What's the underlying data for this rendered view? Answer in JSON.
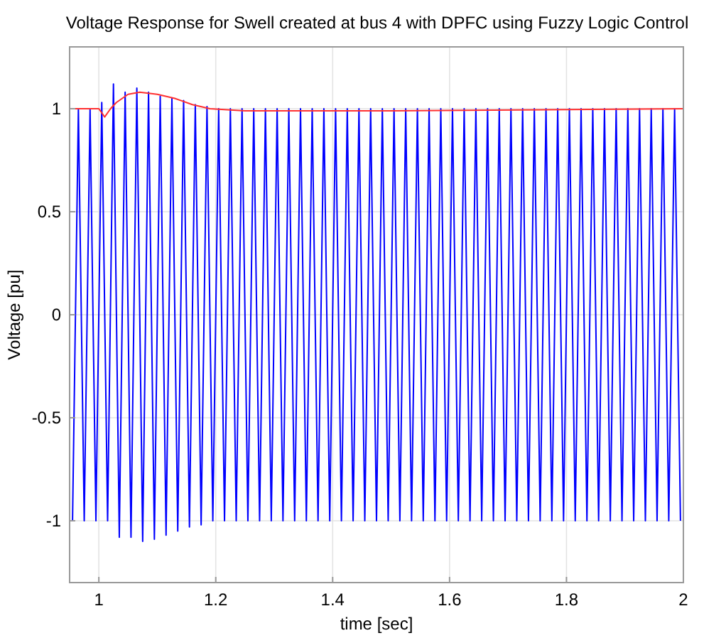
{
  "chart_data": {
    "type": "line",
    "title": "Voltage Response for Swell created at bus 4 with DPFC using Fuzzy Logic Control",
    "xlabel": "time [sec]",
    "ylabel": "Voltage [pu]",
    "xlim": [
      0.95,
      2
    ],
    "xticks": [
      1,
      1.2,
      1.4,
      1.6,
      1.8,
      2
    ],
    "ylim": [
      -1.3,
      1.3
    ],
    "yticks": [
      -1,
      -0.5,
      0,
      0.5,
      1
    ],
    "grid": true,
    "line_style": "solid",
    "series": [
      {
        "color": "#0000ff",
        "x": [
          0.955,
          0.965,
          0.975,
          0.985,
          0.995,
          1.005,
          1.015,
          1.025,
          1.035,
          1.045,
          1.055,
          1.065,
          1.075,
          1.085,
          1.095,
          1.105,
          1.115,
          1.125,
          1.135,
          1.145,
          1.155,
          1.165,
          1.175,
          1.185,
          1.195,
          1.205,
          1.215,
          1.225,
          1.235,
          1.245,
          1.255,
          1.265,
          1.275,
          1.285,
          1.295,
          1.305,
          1.315,
          1.325,
          1.335,
          1.345,
          1.355,
          1.365,
          1.375,
          1.385,
          1.395,
          1.405,
          1.415,
          1.425,
          1.435,
          1.445,
          1.455,
          1.465,
          1.475,
          1.485,
          1.495,
          1.505,
          1.515,
          1.525,
          1.535,
          1.545,
          1.555,
          1.565,
          1.575,
          1.585,
          1.595,
          1.605,
          1.615,
          1.625,
          1.635,
          1.645,
          1.655,
          1.665,
          1.675,
          1.685,
          1.695,
          1.705,
          1.715,
          1.725,
          1.735,
          1.745,
          1.755,
          1.765,
          1.775,
          1.785,
          1.795,
          1.805,
          1.815,
          1.825,
          1.835,
          1.845,
          1.855,
          1.865,
          1.875,
          1.885,
          1.895,
          1.905,
          1.915,
          1.925,
          1.935,
          1.945,
          1.955,
          1.965,
          1.975,
          1.985,
          1.995
        ],
        "values": [
          -1,
          1,
          -1,
          1,
          -1,
          1.03,
          -1,
          1.12,
          -1.08,
          1.08,
          -1.08,
          1.1,
          -1.1,
          1.08,
          -1.09,
          1.06,
          -1.07,
          1.05,
          -1.05,
          1.04,
          -1.03,
          1.02,
          -1.02,
          1.01,
          -1,
          1,
          -1,
          1,
          -1,
          1,
          -1,
          1,
          -1,
          1,
          -1,
          1,
          -1,
          1,
          -1,
          1,
          -1,
          1,
          -1,
          1,
          -1,
          1,
          -1,
          1,
          -1,
          1,
          -1,
          1,
          -1,
          1,
          -1,
          1,
          -1,
          1,
          -1,
          1,
          -1,
          1,
          -1,
          1,
          -1,
          1,
          -1,
          1,
          -1,
          1,
          -1,
          1,
          -1,
          1,
          -1,
          1,
          -1,
          1,
          -1,
          1,
          -1,
          1,
          -1,
          1,
          -1,
          1,
          -1,
          1,
          -1,
          1,
          -1,
          1,
          -1,
          1,
          -1,
          1,
          -1,
          1,
          -1,
          1,
          -1,
          1,
          -1,
          1,
          -1
        ]
      },
      {
        "color": "#ff3030",
        "x": [
          0.95,
          1.0,
          1.01,
          1.02,
          1.03,
          1.05,
          1.07,
          1.1,
          1.13,
          1.16,
          1.19,
          1.25,
          1.5,
          2.0
        ],
        "values": [
          1,
          1,
          0.96,
          1,
          1.03,
          1.07,
          1.08,
          1.07,
          1.05,
          1.02,
          1,
          0.99,
          0.99,
          1
        ]
      }
    ]
  }
}
